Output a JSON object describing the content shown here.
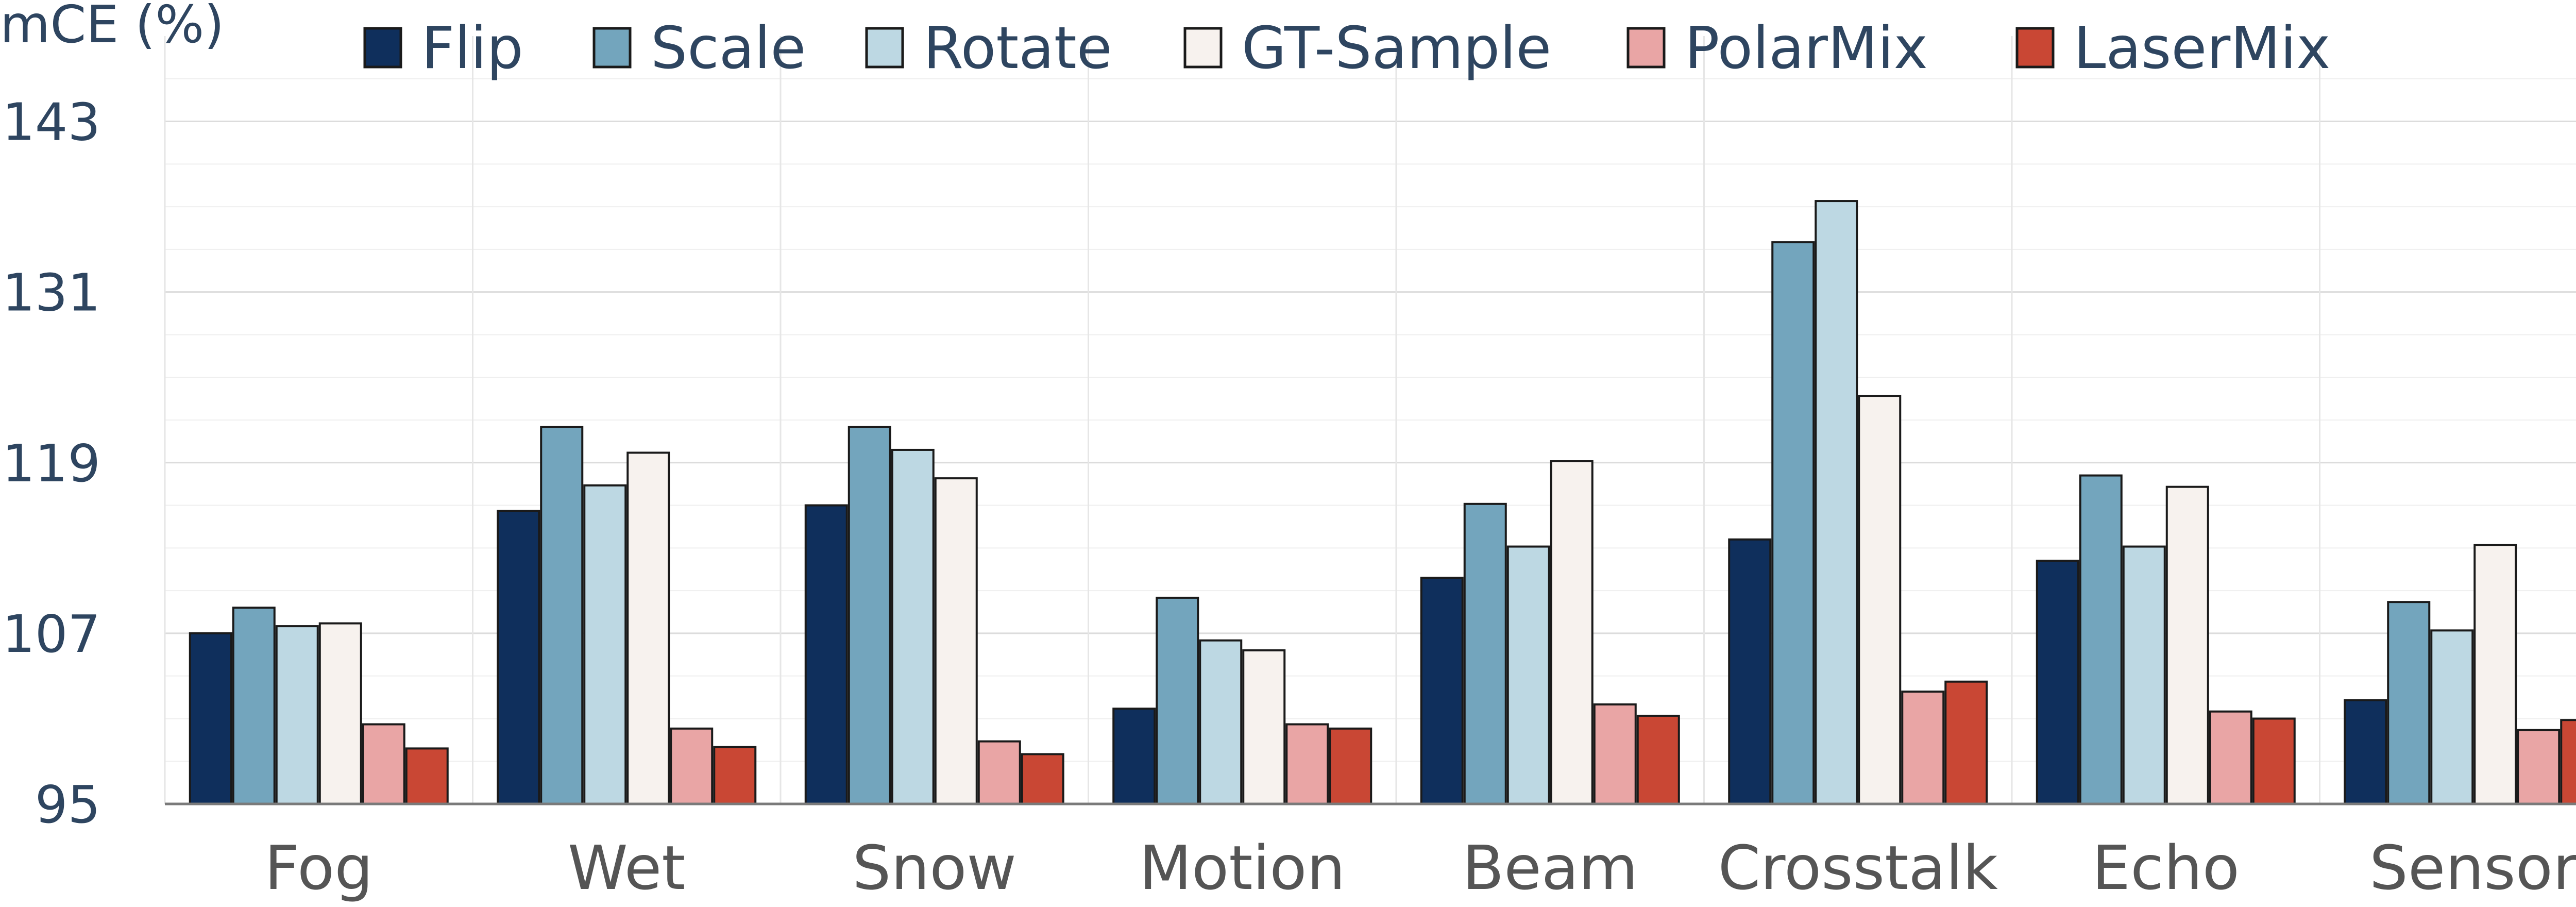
{
  "chart_data": {
    "type": "bar",
    "title": "",
    "xlabel": "",
    "ylabel": "mCE (%)",
    "ylim": [
      95,
      149
    ],
    "yticks": [
      95,
      107,
      119,
      131,
      143
    ],
    "grid": true,
    "legend_position": "top",
    "categories": [
      "Fog",
      "Wet",
      "Snow",
      "Motion",
      "Beam",
      "Crosstalk",
      "Echo",
      "Sensor"
    ],
    "series": [
      {
        "name": "Flip",
        "color": "#0f2f5c",
        "values": [
          107.0,
          115.6,
          116.0,
          101.7,
          110.9,
          113.6,
          112.1,
          102.3
        ]
      },
      {
        "name": "Scale",
        "color": "#73a5bd",
        "values": [
          108.8,
          121.5,
          121.5,
          109.5,
          116.1,
          134.5,
          118.1,
          109.2
        ]
      },
      {
        "name": "Rotate",
        "color": "#bdd8e3",
        "values": [
          107.5,
          117.4,
          119.9,
          106.5,
          113.1,
          137.4,
          113.1,
          107.2
        ]
      },
      {
        "name": "GT-Sample",
        "color": "#f7f2ee",
        "values": [
          107.7,
          119.7,
          117.9,
          105.8,
          119.1,
          123.7,
          117.3,
          113.2
        ]
      },
      {
        "name": "PolarMix",
        "color": "#e9a5a5",
        "values": [
          100.6,
          100.3,
          99.4,
          100.6,
          102.0,
          102.9,
          101.5,
          100.2
        ]
      },
      {
        "name": "LaserMix",
        "color": "#c94734",
        "values": [
          98.9,
          99.0,
          98.5,
          100.3,
          101.2,
          103.6,
          101.0,
          100.9
        ]
      }
    ]
  }
}
